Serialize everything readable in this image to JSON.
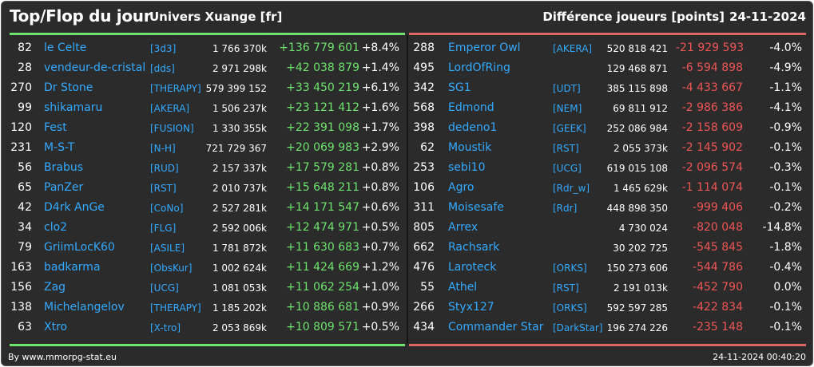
{
  "header": {
    "title": "Top/Flop du jour",
    "server": "Univers Xuange [fr]",
    "metric": "Différence joueurs [points]",
    "date": "24-11-2024"
  },
  "colors": {
    "top": "#6ee36e",
    "flop": "#ee5555",
    "name": "#33aaff",
    "background": "#2b2b2b"
  },
  "top": [
    {
      "rank": "82",
      "name": "le Celte",
      "ally": "[3d3]",
      "points": "1 766 370k",
      "diff": "+136 779 601",
      "pct": "+8.4%"
    },
    {
      "rank": "28",
      "name": "vendeur-de-cristal",
      "ally": "[dds]",
      "points": "2 971 298k",
      "diff": "+42 038 879",
      "pct": "+1.4%"
    },
    {
      "rank": "270",
      "name": "Dr Stone",
      "ally": "[THERAPY]",
      "points": "579 399 152",
      "diff": "+33 450 219",
      "pct": "+6.1%"
    },
    {
      "rank": "99",
      "name": "shikamaru",
      "ally": "[AKERA]",
      "points": "1 506 237k",
      "diff": "+23 121 412",
      "pct": "+1.6%"
    },
    {
      "rank": "120",
      "name": "Fest",
      "ally": "[FUSION]",
      "points": "1 330 355k",
      "diff": "+22 391 098",
      "pct": "+1.7%"
    },
    {
      "rank": "231",
      "name": "M-S-T",
      "ally": "[N-H]",
      "points": "721 729 367",
      "diff": "+20 069 983",
      "pct": "+2.9%"
    },
    {
      "rank": "56",
      "name": "Brabus",
      "ally": "[RUD]",
      "points": "2 157 337k",
      "diff": "+17 579 281",
      "pct": "+0.8%"
    },
    {
      "rank": "65",
      "name": "PanZer",
      "ally": "[RST]",
      "points": "2 010 737k",
      "diff": "+15 648 211",
      "pct": "+0.8%"
    },
    {
      "rank": "42",
      "name": "D4rk AnGe",
      "ally": "[CoNo]",
      "points": "2 527 281k",
      "diff": "+14 171 547",
      "pct": "+0.6%"
    },
    {
      "rank": "34",
      "name": "clo2",
      "ally": "[FLG]",
      "points": "2 592 006k",
      "diff": "+12 474 971",
      "pct": "+0.5%"
    },
    {
      "rank": "79",
      "name": "GriimLocK60",
      "ally": "[ASILE]",
      "points": "1 781 872k",
      "diff": "+11 630 683",
      "pct": "+0.7%"
    },
    {
      "rank": "163",
      "name": "badkarma",
      "ally": "[ObsKur]",
      "points": "1 002 624k",
      "diff": "+11 424 669",
      "pct": "+1.2%"
    },
    {
      "rank": "156",
      "name": "Zag",
      "ally": "[UCG]",
      "points": "1 081 053k",
      "diff": "+11 062 254",
      "pct": "+1.0%"
    },
    {
      "rank": "138",
      "name": "Michelangelov",
      "ally": "[THERAPY]",
      "points": "1 185 202k",
      "diff": "+10 886 681",
      "pct": "+0.9%"
    },
    {
      "rank": "63",
      "name": "Xtro",
      "ally": "[X-tro]",
      "points": "2 053 869k",
      "diff": "+10 809 571",
      "pct": "+0.5%"
    }
  ],
  "flop": [
    {
      "rank": "288",
      "name": "Emperor Owl",
      "ally": "[AKERA]",
      "points": "520 818 421",
      "diff": "-21 929 593",
      "pct": "-4.0%"
    },
    {
      "rank": "495",
      "name": "LordOfRing",
      "ally": "",
      "points": "129 468 871",
      "diff": "-6 594 898",
      "pct": "-4.9%"
    },
    {
      "rank": "342",
      "name": "SG1",
      "ally": "[UDT]",
      "points": "385 115 898",
      "diff": "-4 433 667",
      "pct": "-1.1%"
    },
    {
      "rank": "568",
      "name": "Edmond",
      "ally": "[NEM]",
      "points": "69 811 912",
      "diff": "-2 986 386",
      "pct": "-4.1%"
    },
    {
      "rank": "398",
      "name": "dedeno1",
      "ally": "[GEEK]",
      "points": "252 086 984",
      "diff": "-2 158 609",
      "pct": "-0.9%"
    },
    {
      "rank": "62",
      "name": "Moustik",
      "ally": "[RST]",
      "points": "2 055 373k",
      "diff": "-2 145 902",
      "pct": "-0.1%"
    },
    {
      "rank": "253",
      "name": "sebi10",
      "ally": "[UCG]",
      "points": "619 015 108",
      "diff": "-2 096 574",
      "pct": "-0.3%"
    },
    {
      "rank": "106",
      "name": "Agro",
      "ally": "[Rdr_w]",
      "points": "1 465 629k",
      "diff": "-1 114 074",
      "pct": "-0.1%"
    },
    {
      "rank": "311",
      "name": "Moisesafe",
      "ally": "[Rdr]",
      "points": "448 898 350",
      "diff": "-999 406",
      "pct": "-0.2%"
    },
    {
      "rank": "805",
      "name": "Arrex",
      "ally": "",
      "points": "4 730 024",
      "diff": "-820 048",
      "pct": "-14.8%"
    },
    {
      "rank": "662",
      "name": "Rachsark",
      "ally": "",
      "points": "30 202 725",
      "diff": "-545 845",
      "pct": "-1.8%"
    },
    {
      "rank": "476",
      "name": "Laroteck",
      "ally": "[ORKS]",
      "points": "150 273 606",
      "diff": "-544 786",
      "pct": "-0.4%"
    },
    {
      "rank": "55",
      "name": "Athel",
      "ally": "[RST]",
      "points": "2 191 013k",
      "diff": "-452 790",
      "pct": "0.0%"
    },
    {
      "rank": "266",
      "name": "Styx127",
      "ally": "[ORKS]",
      "points": "592 597 285",
      "diff": "-422 834",
      "pct": "-0.1%"
    },
    {
      "rank": "434",
      "name": "Commander Star",
      "ally": "[DarkStar]",
      "points": "196 274 226",
      "diff": "-235 148",
      "pct": "-0.1%"
    }
  ],
  "footer": {
    "credit": "By www.mmorpg-stat.eu",
    "timestamp": "24-11-2024 00:40:20"
  }
}
